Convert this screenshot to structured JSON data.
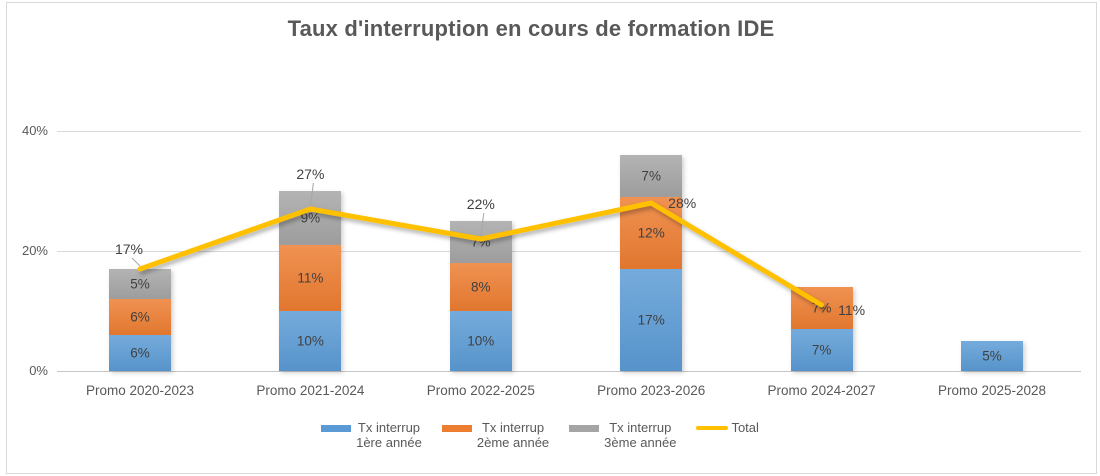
{
  "title": "Taux d'interruption en cours de formation IDE",
  "chart_data": {
    "type": "bar",
    "stacked": true,
    "title": "Taux d'interruption en cours de formation IDE",
    "categories": [
      "Promo 2020-2023",
      "Promo 2021-2024",
      "Promo 2022-2025",
      "Promo 2023-2026",
      "Promo 2024-2027",
      "Promo 2025-2028"
    ],
    "series": [
      {
        "name": "Tx interrup 1ère année",
        "color": "#5B9BD5",
        "values": [
          6,
          10,
          10,
          17,
          7,
          5
        ]
      },
      {
        "name": "Tx interrup 2ème année",
        "color": "#ED7D31",
        "values": [
          6,
          11,
          8,
          12,
          7,
          null
        ]
      },
      {
        "name": "Tx interrup 3ème année",
        "color": "#A5A5A5",
        "values": [
          5,
          9,
          7,
          7,
          null,
          null
        ]
      }
    ],
    "line_series": {
      "name": "Total",
      "color": "#FFC000",
      "values": [
        17,
        27,
        22,
        28,
        11,
        null
      ]
    },
    "xlabel": "",
    "ylabel": "",
    "ylim": [
      0,
      40
    ],
    "y_ticks": [
      {
        "value": 0,
        "label": "0%"
      },
      {
        "value": 20,
        "label": "20%"
      },
      {
        "value": 40,
        "label": "40%"
      }
    ],
    "grid": true,
    "data_label_suffix": "%",
    "legend_position": "bottom"
  },
  "legend": {
    "items": [
      {
        "label_line1": "Tx interrup",
        "label_line2": "1ère année",
        "color": "#5B9BD5",
        "marker": "rect"
      },
      {
        "label_line1": "Tx interrup",
        "label_line2": "2ème année",
        "color": "#ED7D31",
        "marker": "rect"
      },
      {
        "label_line1": "Tx interrup",
        "label_line2": "3ème année",
        "color": "#A5A5A5",
        "marker": "rect"
      },
      {
        "label_line1": "Total",
        "label_line2": "",
        "color": "#FFC000",
        "marker": "line"
      }
    ]
  },
  "colors": {
    "title_text": "#595959",
    "axis_text": "#595959",
    "data_label_text": "#404040",
    "gridline": "#D9D9D9",
    "axis_line": "#C6C6C6",
    "border": "#D9D9D9",
    "background": "#FFFFFF"
  }
}
